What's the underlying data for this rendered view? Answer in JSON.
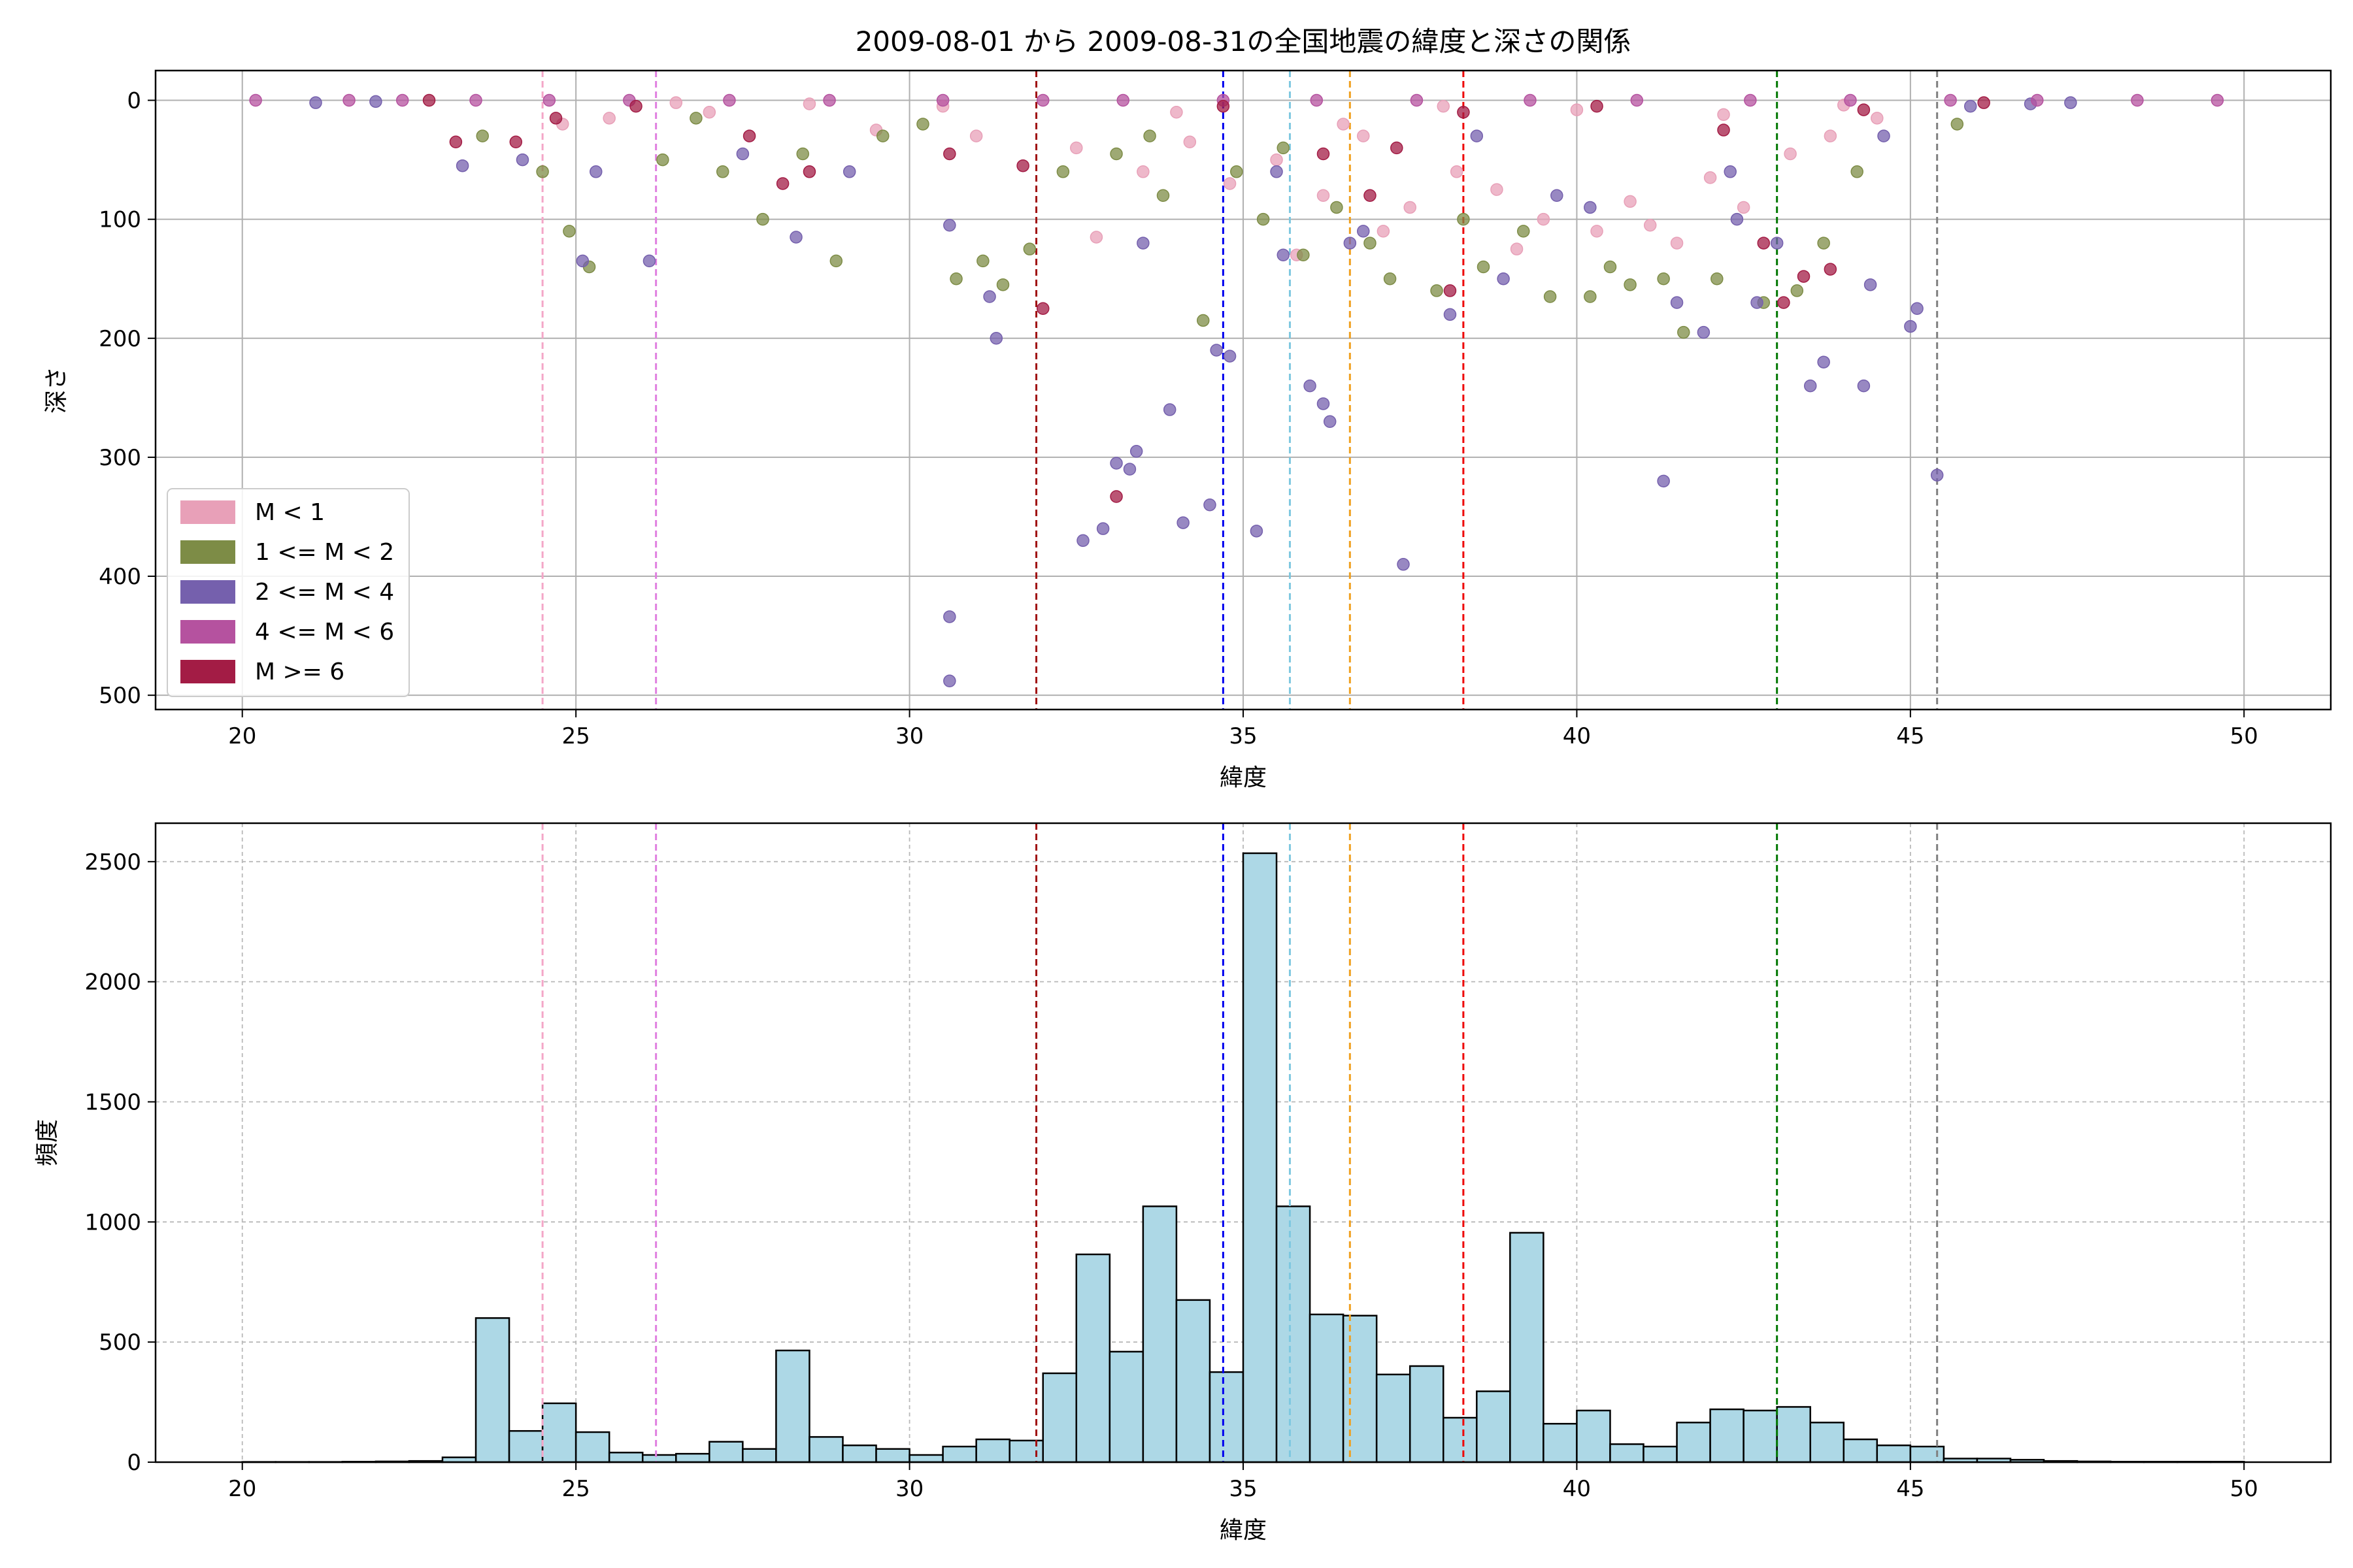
{
  "chart_data": [
    {
      "type": "scatter",
      "title": "2009-08-01 から 2009-08-31の全国地震の緯度と深さの関係",
      "xlabel": "緯度",
      "ylabel": "深さ",
      "xlim": [
        18.7,
        51.3
      ],
      "ylim": [
        512,
        -25
      ],
      "y_inverted": true,
      "grid": true,
      "legend_position": "lower-left",
      "x_ticks": [
        20,
        25,
        30,
        35,
        40,
        45,
        50
      ],
      "y_ticks": [
        0,
        100,
        200,
        300,
        400,
        500
      ],
      "legend": [
        {
          "label": "M < 1",
          "color": "#e8a0b8"
        },
        {
          "label": "1 <= M < 2",
          "color": "#7d8c46"
        },
        {
          "label": "2 <= M < 4",
          "color": "#7560ad"
        },
        {
          "label": "4 <= M < 6",
          "color": "#b5529f"
        },
        {
          "label": "M >= 6",
          "color": "#a31c45"
        }
      ],
      "series": [
        {
          "name": "M < 1",
          "color": "#e8a0b8",
          "points": [
            [
              24.8,
              20
            ],
            [
              25.5,
              15
            ],
            [
              27,
              10
            ],
            [
              29.5,
              25
            ],
            [
              31,
              30
            ],
            [
              32.5,
              40
            ],
            [
              33.5,
              60
            ],
            [
              34.2,
              35
            ],
            [
              34.8,
              70
            ],
            [
              35.5,
              50
            ],
            [
              36.2,
              80
            ],
            [
              36.8,
              30
            ],
            [
              37.5,
              90
            ],
            [
              38.2,
              60
            ],
            [
              38.8,
              75
            ],
            [
              39.5,
              100
            ],
            [
              40.3,
              110
            ],
            [
              40.8,
              85
            ],
            [
              41.5,
              120
            ],
            [
              42,
              65
            ],
            [
              42.5,
              90
            ],
            [
              43.2,
              45
            ],
            [
              43.8,
              30
            ],
            [
              44.5,
              15
            ],
            [
              35.8,
              130
            ],
            [
              37.1,
              110
            ],
            [
              39.1,
              125
            ],
            [
              41.1,
              105
            ],
            [
              32.8,
              115
            ],
            [
              36.5,
              20
            ],
            [
              34,
              10
            ],
            [
              38,
              5
            ],
            [
              40,
              8
            ],
            [
              42.2,
              12
            ],
            [
              44,
              4
            ],
            [
              30.5,
              5
            ],
            [
              28.5,
              3
            ],
            [
              26.5,
              2
            ]
          ]
        },
        {
          "name": "1 <= M < 2",
          "color": "#7d8c46",
          "points": [
            [
              23.6,
              30
            ],
            [
              24.5,
              60
            ],
            [
              24.9,
              110
            ],
            [
              25.2,
              140
            ],
            [
              26.3,
              50
            ],
            [
              27.2,
              60
            ],
            [
              27.8,
              100
            ],
            [
              28.4,
              45
            ],
            [
              28.9,
              135
            ],
            [
              29.6,
              30
            ],
            [
              30.7,
              150
            ],
            [
              31.1,
              135
            ],
            [
              31.4,
              155
            ],
            [
              31.8,
              125
            ],
            [
              32.3,
              60
            ],
            [
              33.1,
              45
            ],
            [
              33.8,
              80
            ],
            [
              34.4,
              185
            ],
            [
              34.9,
              60
            ],
            [
              35.3,
              100
            ],
            [
              35.9,
              130
            ],
            [
              36.4,
              90
            ],
            [
              37.2,
              150
            ],
            [
              37.9,
              160
            ],
            [
              38.6,
              140
            ],
            [
              39.2,
              110
            ],
            [
              39.6,
              165
            ],
            [
              40.2,
              165
            ],
            [
              40.8,
              155
            ],
            [
              41.3,
              150
            ],
            [
              41.6,
              195
            ],
            [
              42.1,
              150
            ],
            [
              42.8,
              170
            ],
            [
              43.3,
              160
            ],
            [
              43.7,
              120
            ],
            [
              44.2,
              60
            ],
            [
              45.7,
              20
            ],
            [
              36.9,
              120
            ],
            [
              38.3,
              100
            ],
            [
              40.5,
              140
            ],
            [
              33.6,
              30
            ],
            [
              35.6,
              40
            ],
            [
              30.2,
              20
            ],
            [
              26.8,
              15
            ]
          ]
        },
        {
          "name": "2 <= M < 4",
          "color": "#7560ad",
          "points": [
            [
              23.3,
              55
            ],
            [
              24.2,
              50
            ],
            [
              25.1,
              135
            ],
            [
              25.3,
              60
            ],
            [
              26.1,
              135
            ],
            [
              27.5,
              45
            ],
            [
              28.3,
              115
            ],
            [
              29.1,
              60
            ],
            [
              30.6,
              105
            ],
            [
              30.6,
              434
            ],
            [
              30.6,
              488
            ],
            [
              31.2,
              165
            ],
            [
              31.3,
              200
            ],
            [
              32.6,
              370
            ],
            [
              32.9,
              360
            ],
            [
              33.1,
              305
            ],
            [
              33.3,
              310
            ],
            [
              33.4,
              295
            ],
            [
              33.9,
              260
            ],
            [
              34.1,
              355
            ],
            [
              34.5,
              340
            ],
            [
              34.6,
              210
            ],
            [
              34.8,
              215
            ],
            [
              35.2,
              362
            ],
            [
              35.6,
              130
            ],
            [
              36,
              240
            ],
            [
              36.2,
              255
            ],
            [
              36.3,
              270
            ],
            [
              36.6,
              120
            ],
            [
              37.4,
              390
            ],
            [
              38.1,
              180
            ],
            [
              38.9,
              150
            ],
            [
              39.7,
              80
            ],
            [
              41.3,
              320
            ],
            [
              41.5,
              170
            ],
            [
              41.9,
              195
            ],
            [
              42.4,
              100
            ],
            [
              42.7,
              170
            ],
            [
              43,
              120
            ],
            [
              43.5,
              240
            ],
            [
              43.7,
              220
            ],
            [
              44.3,
              240
            ],
            [
              44.4,
              155
            ],
            [
              45,
              190
            ],
            [
              45.1,
              175
            ],
            [
              45.4,
              315
            ],
            [
              44.6,
              30
            ],
            [
              45.9,
              5
            ],
            [
              46.8,
              3
            ],
            [
              47.4,
              2
            ],
            [
              21.1,
              2
            ],
            [
              22,
              1
            ],
            [
              33.5,
              120
            ],
            [
              36.8,
              110
            ],
            [
              35.5,
              60
            ],
            [
              40.2,
              90
            ],
            [
              38.5,
              30
            ],
            [
              42.3,
              60
            ]
          ]
        },
        {
          "name": "4 <= M < 6",
          "color": "#b5529f",
          "points": [
            [
              20.2,
              0
            ],
            [
              21.6,
              0
            ],
            [
              22.4,
              0
            ],
            [
              23.5,
              0
            ],
            [
              24.6,
              0
            ],
            [
              25.8,
              0
            ],
            [
              27.3,
              0
            ],
            [
              28.8,
              0
            ],
            [
              30.5,
              0
            ],
            [
              32,
              0
            ],
            [
              33.2,
              0
            ],
            [
              34.7,
              0
            ],
            [
              36.1,
              0
            ],
            [
              37.6,
              0
            ],
            [
              39.3,
              0
            ],
            [
              40.9,
              0
            ],
            [
              42.6,
              0
            ],
            [
              44.1,
              0
            ],
            [
              45.6,
              0
            ],
            [
              46.9,
              0
            ],
            [
              48.4,
              0
            ],
            [
              49.6,
              0
            ]
          ]
        },
        {
          "name": "M >= 6",
          "color": "#a31c45",
          "points": [
            [
              22.8,
              0
            ],
            [
              23.2,
              35
            ],
            [
              24.1,
              35
            ],
            [
              24.7,
              15
            ],
            [
              25.9,
              5
            ],
            [
              27.6,
              30
            ],
            [
              28.1,
              70
            ],
            [
              28.5,
              60
            ],
            [
              30.6,
              45
            ],
            [
              31.7,
              55
            ],
            [
              32,
              175
            ],
            [
              33.1,
              333
            ],
            [
              34.7,
              5
            ],
            [
              36.2,
              45
            ],
            [
              36.9,
              80
            ],
            [
              37.3,
              40
            ],
            [
              38.1,
              160
            ],
            [
              38.3,
              10
            ],
            [
              40.3,
              5
            ],
            [
              42.2,
              25
            ],
            [
              42.8,
              120
            ],
            [
              43.1,
              170
            ],
            [
              43.4,
              148
            ],
            [
              43.8,
              142
            ],
            [
              44.3,
              8
            ],
            [
              46.1,
              2
            ]
          ]
        }
      ]
    },
    {
      "type": "bar",
      "subtype": "histogram",
      "title": "",
      "xlabel": "緯度",
      "ylabel": "頻度",
      "xlim": [
        18.7,
        51.3
      ],
      "ylim": [
        0,
        2660
      ],
      "grid": true,
      "x_ticks": [
        20,
        25,
        30,
        35,
        40,
        45,
        50
      ],
      "y_ticks": [
        0,
        500,
        1000,
        1500,
        2000,
        2500
      ],
      "bin_start": 20.0,
      "bin_width": 0.5,
      "bar_color": "#add8e6",
      "values": [
        1,
        1,
        1,
        2,
        3,
        5,
        20,
        600,
        130,
        245,
        125,
        40,
        30,
        35,
        85,
        55,
        465,
        105,
        70,
        55,
        30,
        65,
        95,
        90,
        370,
        865,
        460,
        1065,
        675,
        375,
        2535,
        1065,
        615,
        610,
        365,
        400,
        185,
        295,
        955,
        160,
        215,
        75,
        65,
        165,
        220,
        215,
        230,
        165,
        95,
        70,
        65,
        15,
        15,
        10,
        5,
        3,
        2,
        2,
        2,
        2
      ]
    }
  ],
  "reference_lines": [
    {
      "x": 24.5,
      "color": "#f4a6c8"
    },
    {
      "x": 26.2,
      "color": "#e07fe0"
    },
    {
      "x": 31.9,
      "color": "#a01010"
    },
    {
      "x": 34.7,
      "color": "#0000ee"
    },
    {
      "x": 35.7,
      "color": "#7ec8e0"
    },
    {
      "x": 36.6,
      "color": "#f0a020"
    },
    {
      "x": 38.3,
      "color": "#ee0000"
    },
    {
      "x": 43.0,
      "color": "#007700"
    },
    {
      "x": 45.4,
      "color": "#808080"
    }
  ]
}
